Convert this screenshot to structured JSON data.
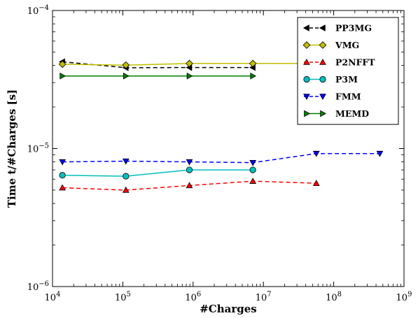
{
  "chart_data": {
    "type": "line",
    "title": "",
    "xlabel": "#Charges",
    "ylabel": "Time t/#Charges [s]",
    "xscale": "log",
    "yscale": "log",
    "xlim": [
      10000,
      1000000000
    ],
    "ylim": [
      1e-06,
      0.0001
    ],
    "x_ticks": [
      {
        "value": 10000,
        "base": "10",
        "exp": "4"
      },
      {
        "value": 100000,
        "base": "10",
        "exp": "5"
      },
      {
        "value": 1000000,
        "base": "10",
        "exp": "6"
      },
      {
        "value": 10000000,
        "base": "10",
        "exp": "7"
      },
      {
        "value": 100000000,
        "base": "10",
        "exp": "8"
      },
      {
        "value": 1000000000,
        "base": "10",
        "exp": "9"
      }
    ],
    "y_ticks": [
      {
        "value": 1e-06,
        "base": "10",
        "exp": "−6"
      },
      {
        "value": 1e-05,
        "base": "10",
        "exp": "−5"
      },
      {
        "value": 0.0001,
        "base": "10",
        "exp": "−4"
      }
    ],
    "grid": false,
    "legend_position": "top-right",
    "series": [
      {
        "name": "PP3MG",
        "color": "#000000",
        "dashed": true,
        "marker": "triangle-left",
        "x": [
          13824,
          110592,
          884736,
          7077888
        ],
        "y": [
          4.25e-05,
          3.85e-05,
          3.86e-05,
          3.86e-05
        ]
      },
      {
        "name": "VMG",
        "color": "#bfbf00",
        "dashed": false,
        "marker": "diamond",
        "x": [
          13824,
          110592,
          884736,
          7077888,
          56623104
        ],
        "y": [
          4.08e-05,
          4.02e-05,
          4.13e-05,
          4.13e-05,
          4.13e-05
        ],
        "hidden_markers": [
          4
        ]
      },
      {
        "name": "P2NFFT",
        "color": "#ff0000",
        "dashed": true,
        "marker": "triangle-up",
        "x": [
          13824,
          110592,
          884736,
          7077888,
          56623104
        ],
        "y": [
          5.2e-06,
          5e-06,
          5.4e-06,
          5.8e-06,
          5.6e-06
        ]
      },
      {
        "name": "P3M",
        "color": "#00bfbf",
        "dashed": false,
        "marker": "circle",
        "x": [
          13824,
          110592,
          884736,
          7077888
        ],
        "y": [
          6.4e-06,
          6.3e-06,
          7e-06,
          7e-06
        ]
      },
      {
        "name": "FMM",
        "color": "#0000ff",
        "dashed": true,
        "marker": "triangle-down",
        "x": [
          13824,
          110592,
          884736,
          7077888,
          56623104,
          452984832
        ],
        "y": [
          8e-06,
          8.1e-06,
          8e-06,
          7.9e-06,
          9.2e-06,
          9.2e-06
        ]
      },
      {
        "name": "MEMD",
        "color": "#007f00",
        "dashed": false,
        "marker": "triangle-right",
        "x": [
          13824,
          110592,
          884736,
          7077888
        ],
        "y": [
          3.35e-05,
          3.35e-05,
          3.35e-05,
          3.35e-05
        ]
      }
    ]
  }
}
